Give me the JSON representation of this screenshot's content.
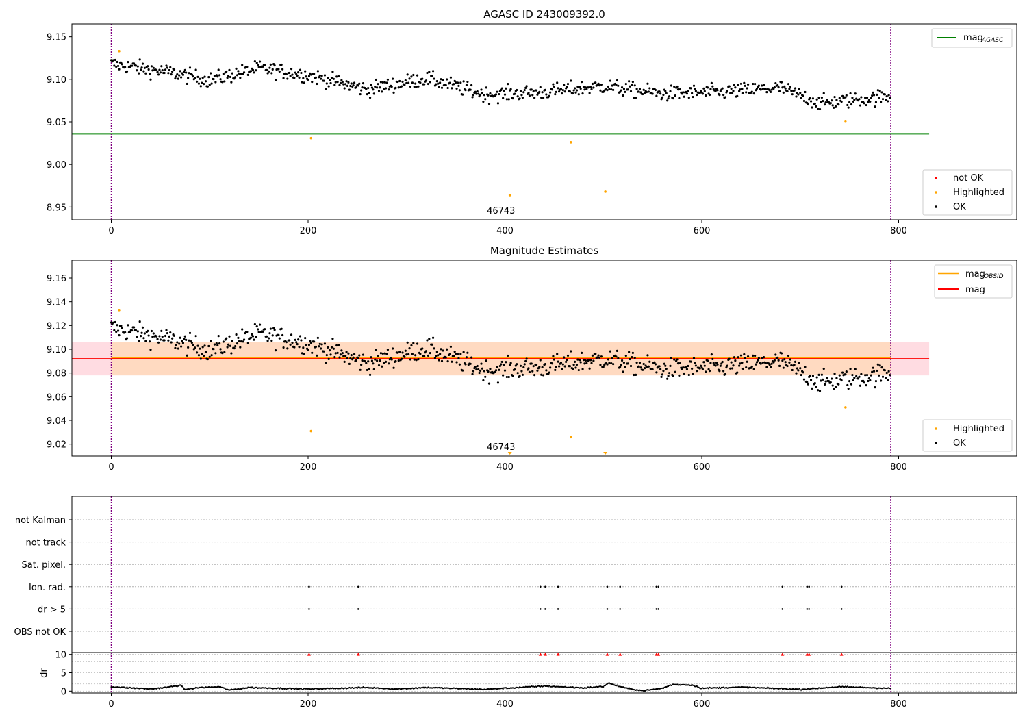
{
  "colors": {
    "ok": "#000000",
    "highlighted": "#ffa500",
    "not_ok": "#ff0000",
    "mag_agasc": "#008000",
    "mag_obsid": "#ffa500",
    "mag": "#ff0000",
    "band_pink": "#ffc0cb",
    "band_orange": "#ffdab9",
    "obs_boundary": "#800080"
  },
  "chart_data": [
    {
      "type": "scatter",
      "title": "AGASC ID 243009392.0",
      "xlabel": "",
      "ylabel": "",
      "xlim": [
        -40,
        920
      ],
      "ylim": [
        8.935,
        9.165
      ],
      "x_ticks": [
        "0",
        "200",
        "400",
        "600",
        "800"
      ],
      "y_ticks": [
        "8.95",
        "9.00",
        "9.05",
        "9.10",
        "9.15"
      ],
      "obs_boundaries": [
        0,
        792
      ],
      "obsid_labels": [
        {
          "text": "46743",
          "x": 396
        }
      ],
      "series": [
        {
          "name": "OK",
          "trend_points": [
            [
              0,
              9.118
            ],
            [
              60,
              9.108
            ],
            [
              100,
              9.099
            ],
            [
              150,
              9.113
            ],
            [
              200,
              9.105
            ],
            [
              260,
              9.088
            ],
            [
              320,
              9.101
            ],
            [
              380,
              9.082
            ],
            [
              440,
              9.085
            ],
            [
              500,
              9.092
            ],
            [
              560,
              9.083
            ],
            [
              620,
              9.085
            ],
            [
              680,
              9.09
            ],
            [
              720,
              9.072
            ],
            [
              792,
              9.08
            ]
          ],
          "count": 792
        },
        {
          "name": "Highlighted",
          "points": [
            [
              8,
              9.133
            ],
            [
              203,
              9.031
            ],
            [
              405,
              8.964
            ],
            [
              467,
              9.026
            ],
            [
              502,
              8.968
            ],
            [
              746,
              9.051
            ]
          ]
        },
        {
          "name": "not OK",
          "points": []
        }
      ],
      "lines": [
        {
          "name": "mag_AGASC",
          "y": 9.036,
          "x_range": [
            -40,
            831
          ]
        }
      ],
      "legend_upper": {
        "placement": "top-right",
        "entries": [
          {
            "label": "mag",
            "sub": "AGASC"
          }
        ]
      },
      "legend_lower": {
        "placement": "bottom-right",
        "entries": [
          "not OK",
          "Highlighted",
          "OK"
        ]
      }
    },
    {
      "type": "scatter",
      "title": "Magnitude Estimates",
      "xlabel": "",
      "ylabel": "",
      "xlim": [
        -40,
        920
      ],
      "ylim": [
        9.01,
        9.175
      ],
      "x_ticks": [
        "0",
        "200",
        "400",
        "600",
        "800"
      ],
      "y_ticks": [
        "9.02",
        "9.04",
        "9.06",
        "9.08",
        "9.10",
        "9.12",
        "9.14",
        "9.16"
      ],
      "obs_boundaries": [
        0,
        792
      ],
      "obsid_labels": [
        {
          "text": "46743",
          "x": 396
        }
      ],
      "series": [
        {
          "name": "OK",
          "same_as": "panel 1"
        },
        {
          "name": "Highlighted",
          "points": [
            [
              8,
              9.133
            ],
            [
              203,
              9.031
            ],
            [
              467,
              9.026
            ],
            [
              746,
              9.051
            ]
          ],
          "off_scale_markers": [
            405,
            502
          ]
        }
      ],
      "lines": [
        {
          "name": "mag_OBSID",
          "y": 9.0925,
          "x_range": [
            0,
            792
          ]
        },
        {
          "name": "mag",
          "y": 9.092,
          "x_range": [
            -40,
            831
          ]
        }
      ],
      "bands": [
        {
          "name": "mag",
          "y_range": [
            9.078,
            9.106
          ],
          "x_range": [
            -40,
            831
          ],
          "color": "pink"
        },
        {
          "name": "mag_OBSID",
          "y_range": [
            9.078,
            9.106
          ],
          "x_range": [
            0,
            792
          ],
          "color": "orange"
        }
      ],
      "legend_upper": {
        "placement": "top-right",
        "entries": [
          {
            "label": "mag",
            "sub": "OBSID"
          },
          {
            "label": "mag",
            "sub": ""
          }
        ]
      },
      "legend_lower": {
        "placement": "bottom-right",
        "entries": [
          "Highlighted",
          "OK"
        ]
      }
    },
    {
      "type": "scatter",
      "title": "",
      "xlabel": "",
      "ylabel": "",
      "xlim": [
        -40,
        920
      ],
      "categories": [
        "not Kalman",
        "not track",
        "Sat. pixel.",
        "Ion. rad.",
        "dr > 5",
        "OBS not OK"
      ],
      "obs_boundaries": [
        0,
        792
      ],
      "flags": {
        "Ion. rad.": [
          201,
          251,
          436,
          441,
          454,
          504,
          517,
          554,
          556,
          682,
          707,
          709,
          742
        ],
        "dr > 5": [
          201,
          251,
          436,
          441,
          454,
          504,
          517,
          554,
          556,
          682,
          707,
          709,
          742
        ]
      }
    },
    {
      "type": "line",
      "title": "",
      "xlabel": "",
      "ylabel": "dr",
      "xlim": [
        -40,
        920
      ],
      "ylim": [
        -0.5,
        10.5
      ],
      "x_ticks": [
        "0",
        "200",
        "400",
        "600",
        "800"
      ],
      "y_ticks": [
        "0",
        "5",
        "10"
      ],
      "obs_boundaries": [
        0,
        792
      ],
      "clipped_markers_at_10": [
        201,
        251,
        436,
        441,
        454,
        504,
        517,
        554,
        556,
        682,
        707,
        709,
        742
      ],
      "dr_profile": [
        [
          0,
          1.2
        ],
        [
          40,
          0.6
        ],
        [
          55,
          1.0
        ],
        [
          70,
          1.6
        ],
        [
          75,
          0.5
        ],
        [
          90,
          1.0
        ],
        [
          110,
          1.2
        ],
        [
          120,
          0.3
        ],
        [
          140,
          1.0
        ],
        [
          200,
          0.6
        ],
        [
          260,
          1.0
        ],
        [
          290,
          0.6
        ],
        [
          320,
          1.0
        ],
        [
          380,
          0.5
        ],
        [
          440,
          1.4
        ],
        [
          480,
          0.9
        ],
        [
          500,
          1.3
        ],
        [
          505,
          2.2
        ],
        [
          520,
          1.0
        ],
        [
          540,
          0.1
        ],
        [
          560,
          0.8
        ],
        [
          570,
          1.8
        ],
        [
          590,
          1.7
        ],
        [
          600,
          0.8
        ],
        [
          640,
          1.1
        ],
        [
          700,
          0.5
        ],
        [
          740,
          1.2
        ],
        [
          790,
          0.8
        ]
      ]
    }
  ]
}
